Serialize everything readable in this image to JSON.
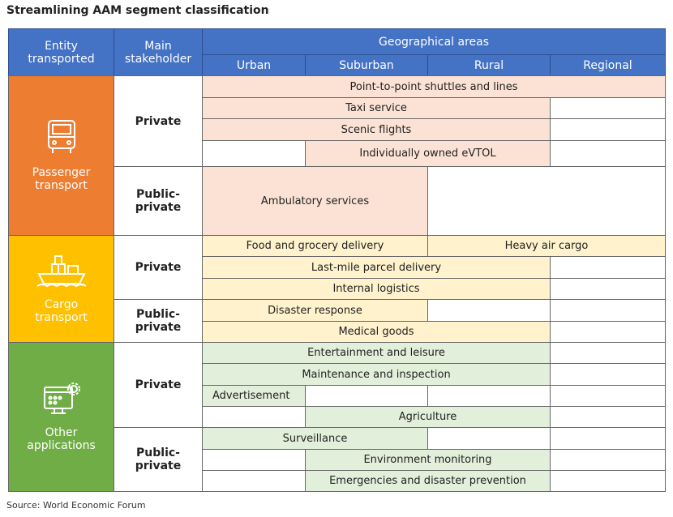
{
  "title": "Streamlining AAM segment classification",
  "header": {
    "entity": "Entity transported",
    "stakeholder": "Main stakeholder",
    "geo": "Geographical areas",
    "areas": [
      "Urban",
      "Suburban",
      "Rural",
      "Regional"
    ]
  },
  "groups": [
    {
      "name": "Passenger transport",
      "stakeholders": [
        {
          "name": "Private",
          "segments": [
            "Point-to-point shuttles and lines",
            "Taxi service",
            "Scenic flights",
            "Individually owned eVTOL"
          ]
        },
        {
          "name": "Public-private",
          "segments": [
            "Ambulatory services"
          ]
        }
      ]
    },
    {
      "name": "Cargo transport",
      "stakeholders": [
        {
          "name": "Private",
          "segments": [
            "Food and grocery delivery",
            "Heavy air cargo",
            "Last-mile parcel delivery",
            "Internal logistics"
          ]
        },
        {
          "name": "Public-private",
          "segments": [
            "Disaster response",
            "Medical goods"
          ]
        }
      ]
    },
    {
      "name": "Other applications",
      "stakeholders": [
        {
          "name": "Private",
          "segments": [
            "Entertainment and leisure",
            "Maintenance and inspection",
            "Advertisement",
            "Agriculture"
          ]
        },
        {
          "name": "Public-private",
          "segments": [
            "Surveillance",
            "Environment monitoring",
            "Emergencies and disaster prevention"
          ]
        }
      ]
    }
  ],
  "source": "Source: World Economic Forum"
}
